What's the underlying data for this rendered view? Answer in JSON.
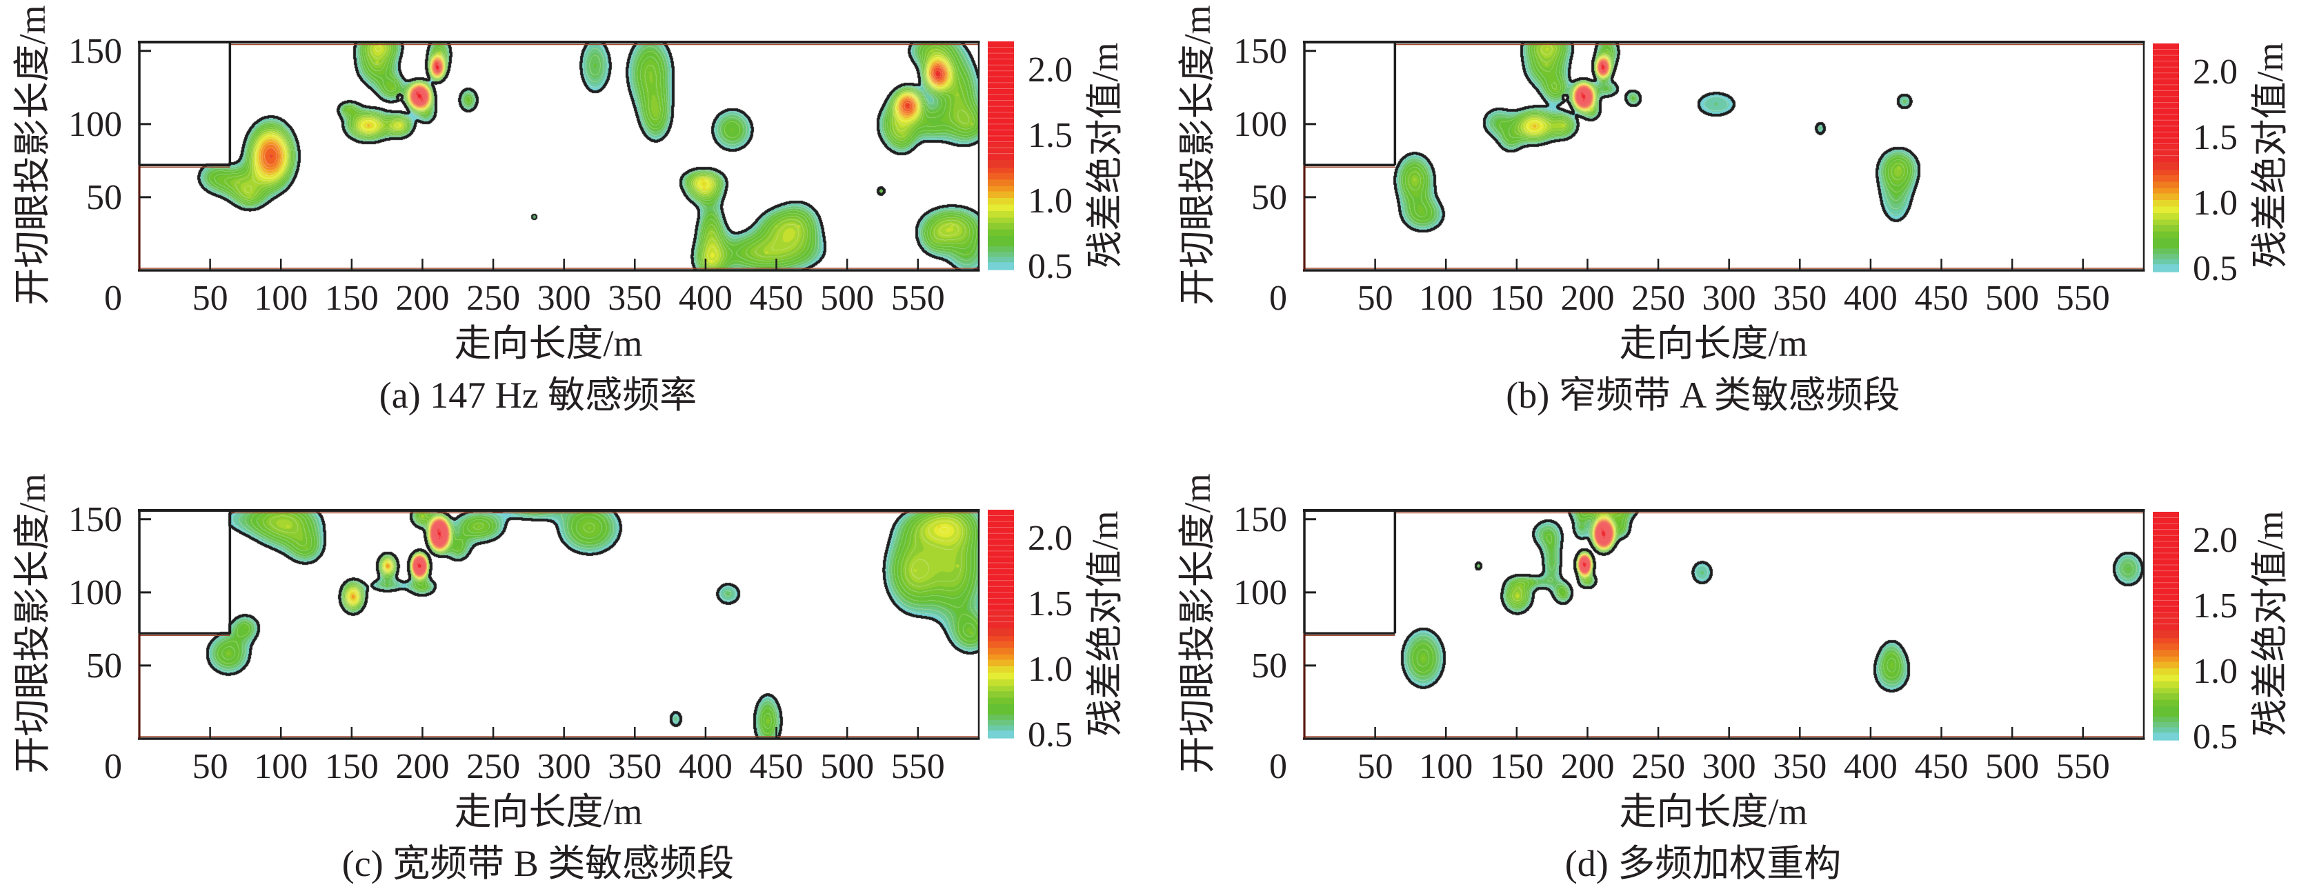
{
  "colormap": [
    {
      "value": 0.5,
      "color": "#76d2d4"
    },
    {
      "value": 0.54,
      "color": "#6ccaa8"
    },
    {
      "value": 0.58,
      "color": "#6cc680"
    },
    {
      "value": 0.62,
      "color": "#68c25c"
    },
    {
      "value": 0.66,
      "color": "#66c034"
    },
    {
      "value": 0.74,
      "color": "#74c42e"
    },
    {
      "value": 0.79,
      "color": "#8ccc30"
    },
    {
      "value": 0.84,
      "color": "#a8d630"
    },
    {
      "value": 0.88,
      "color": "#c6e030"
    },
    {
      "value": 0.93,
      "color": "#e4ec34"
    },
    {
      "value": 0.98,
      "color": "#e6d82a"
    },
    {
      "value": 1.03,
      "color": "#eeb423"
    },
    {
      "value": 1.08,
      "color": "#f29620"
    },
    {
      "value": 1.12,
      "color": "#f07c20"
    },
    {
      "value": 1.17,
      "color": "#f06022"
    },
    {
      "value": 1.22,
      "color": "#ee4a24"
    },
    {
      "value": 1.26,
      "color": "#e83828"
    },
    {
      "value": 1.32,
      "color": "#ec2a2a"
    },
    {
      "value": 1.45,
      "color": "#ee2228"
    }
  ],
  "chart_data": [
    {
      "panel": "a",
      "type": "heatmap",
      "style": "filled-contour",
      "title": "(a) 147 Hz 敏感频率",
      "xlabel": "走向长度/m",
      "ylabel": "开切眼投影长度/m",
      "origin_tick": "0",
      "xticks": [
        50,
        100,
        150,
        200,
        250,
        300,
        350,
        400,
        450,
        500,
        550
      ],
      "yticks": [
        50,
        100,
        150
      ],
      "xlim": [
        0,
        593
      ],
      "ylim": [
        0,
        156
      ],
      "grid": false,
      "legend": "colorbar-right",
      "colorbar": {
        "label": "残差绝对值/m",
        "ticks": [
          0.5,
          1.0,
          1.5,
          2.0
        ],
        "tick_labels": [
          "0.5",
          "1.0",
          "1.5",
          "2.0"
        ],
        "range": [
          0.48,
          2.22
        ]
      },
      "contour_threshold": 0.5,
      "masked_region": {
        "x": [
          0,
          64
        ],
        "y": [
          72,
          156
        ]
      },
      "peaks": [
        {
          "x": 93,
          "y": 78,
          "value": 1.22,
          "extent_x": 20,
          "extent_y": 27
        },
        {
          "x": 70,
          "y": 60,
          "value": 0.75,
          "extent_x": 16,
          "extent_y": 11
        },
        {
          "x": 52,
          "y": 64,
          "value": 0.62,
          "extent_x": 9,
          "extent_y": 8
        },
        {
          "x": 78,
          "y": 50,
          "value": 0.7,
          "extent_x": 10,
          "extent_y": 8
        },
        {
          "x": 168,
          "y": 142,
          "value": 0.8,
          "extent_x": 15,
          "extent_y": 17
        },
        {
          "x": 170,
          "y": 154,
          "value": 0.72,
          "extent_x": 13,
          "extent_y": 8
        },
        {
          "x": 210.5,
          "y": 138.5,
          "value": 1.38,
          "extent_x": 7,
          "extent_y": 10
        },
        {
          "x": 212,
          "y": 148,
          "value": 0.75,
          "extent_x": 8,
          "extent_y": 12
        },
        {
          "x": 198,
          "y": 119,
          "value": 1.7,
          "extent_x": 11,
          "extent_y": 12
        },
        {
          "x": 162,
          "y": 99,
          "value": 1.0,
          "extent_x": 18,
          "extent_y": 12
        },
        {
          "x": 184,
          "y": 99,
          "value": 0.88,
          "extent_x": 10,
          "extent_y": 8.5
        },
        {
          "x": 148,
          "y": 110,
          "value": 0.7,
          "extent_x": 7,
          "extent_y": 5
        },
        {
          "x": 179,
          "y": 124,
          "value": 0.7,
          "extent_x": 9,
          "extent_y": 8
        },
        {
          "x": 203,
          "y": 108,
          "value": 0.65,
          "extent_x": 6,
          "extent_y": 7
        },
        {
          "x": 232.5,
          "y": 116.4,
          "value": 0.7,
          "extent_x": 6.2,
          "extent_y": 7.5
        },
        {
          "x": 279,
          "y": 36.5,
          "value": 0.56,
          "extent_x": 1.3,
          "extent_y": 1.3
        },
        {
          "x": 322,
          "y": 140,
          "value": 0.66,
          "extent_x": 10,
          "extent_y": 18
        },
        {
          "x": 361,
          "y": 135,
          "value": 0.78,
          "extent_x": 16,
          "extent_y": 26
        },
        {
          "x": 365,
          "y": 105,
          "value": 0.72,
          "extent_x": 10,
          "extent_y": 16
        },
        {
          "x": 419,
          "y": 96,
          "value": 0.72,
          "extent_x": 14,
          "extent_y": 14
        },
        {
          "x": 399,
          "y": 56,
          "value": 0.85,
          "extent_x": 14,
          "extent_y": 11
        },
        {
          "x": 398,
          "y": 62,
          "value": 0.7,
          "extent_x": 12,
          "extent_y": 6
        },
        {
          "x": 404,
          "y": 25,
          "value": 0.78,
          "extent_x": 10,
          "extent_y": 22
        },
        {
          "x": 404,
          "y": 6,
          "value": 0.7,
          "extent_x": 10,
          "extent_y": 10
        },
        {
          "x": 443,
          "y": 12,
          "value": 0.82,
          "extent_x": 38,
          "extent_y": 15
        },
        {
          "x": 466,
          "y": 30,
          "value": 0.75,
          "extent_x": 15,
          "extent_y": 16
        },
        {
          "x": 450,
          "y": 30,
          "value": 0.65,
          "extent_x": 12,
          "extent_y": 10
        },
        {
          "x": 524,
          "y": 54.2,
          "value": 0.62,
          "extent_x": 2.2,
          "extent_y": 2.2
        },
        {
          "x": 564,
          "y": 134,
          "value": 1.22,
          "extent_x": 12,
          "extent_y": 14
        },
        {
          "x": 543,
          "y": 113,
          "value": 1.2,
          "extent_x": 13,
          "extent_y": 14
        },
        {
          "x": 578,
          "y": 120,
          "value": 0.78,
          "extent_x": 16,
          "extent_y": 30
        },
        {
          "x": 560,
          "y": 150,
          "value": 0.75,
          "extent_x": 16,
          "extent_y": 12
        },
        {
          "x": 533,
          "y": 100,
          "value": 0.7,
          "extent_x": 11,
          "extent_y": 14
        },
        {
          "x": 540,
          "y": 92,
          "value": 0.65,
          "extent_x": 8,
          "extent_y": 10
        },
        {
          "x": 588,
          "y": 100,
          "value": 0.65,
          "extent_x": 10,
          "extent_y": 10
        },
        {
          "x": 558,
          "y": 100,
          "value": 0.68,
          "extent_x": 12,
          "extent_y": 10
        },
        {
          "x": 574,
          "y": 30,
          "value": 0.82,
          "extent_x": 22,
          "extent_y": 14
        },
        {
          "x": 585,
          "y": 12,
          "value": 0.65,
          "extent_x": 12,
          "extent_y": 13
        },
        {
          "x": 562,
          "y": 20,
          "value": 0.6,
          "extent_x": 8,
          "extent_y": 8
        }
      ],
      "dips": [
        {
          "x": 184,
          "y": 118.5,
          "depth": 0.75,
          "spread_x": 0.9,
          "spread_y": 0.9
        }
      ]
    },
    {
      "panel": "b",
      "type": "heatmap",
      "style": "filled-contour",
      "title": "(b) 窄频带 A 类敏感频段",
      "xlabel": "走向长度/m",
      "ylabel": "开切眼投影长度/m",
      "origin_tick": "0",
      "xticks": [
        50,
        100,
        150,
        200,
        250,
        300,
        350,
        400,
        450,
        500,
        550
      ],
      "yticks": [
        50,
        100,
        150
      ],
      "xlim": [
        0,
        593
      ],
      "ylim": [
        0,
        156
      ],
      "grid": false,
      "legend": "colorbar-right",
      "colorbar": {
        "label": "残差绝对值/m",
        "ticks": [
          0.5,
          1.0,
          1.5,
          2.0
        ],
        "tick_labels": [
          "0.5",
          "1.0",
          "1.5",
          "2.0"
        ],
        "range": [
          0.48,
          2.22
        ]
      },
      "contour_threshold": 0.5,
      "masked_region": {
        "x": [
          0,
          64
        ],
        "y": [
          72,
          156
        ]
      },
      "peaks": [
        {
          "x": 78,
          "y": 62,
          "value": 0.8,
          "extent_x": 14,
          "extent_y": 18
        },
        {
          "x": 84,
          "y": 38,
          "value": 0.7,
          "extent_x": 14,
          "extent_y": 11
        },
        {
          "x": 171,
          "y": 141,
          "value": 0.78,
          "extent_x": 16,
          "extent_y": 17
        },
        {
          "x": 172,
          "y": 154,
          "value": 0.7,
          "extent_x": 14,
          "extent_y": 8
        },
        {
          "x": 211,
          "y": 138.6,
          "value": 1.5,
          "extent_x": 7,
          "extent_y": 9.5
        },
        {
          "x": 214,
          "y": 149,
          "value": 0.72,
          "extent_x": 8,
          "extent_y": 12
        },
        {
          "x": 197.3,
          "y": 118.8,
          "value": 1.85,
          "extent_x": 10,
          "extent_y": 12
        },
        {
          "x": 162.7,
          "y": 98.5,
          "value": 1.0,
          "extent_x": 17,
          "extent_y": 13
        },
        {
          "x": 137,
          "y": 101,
          "value": 0.65,
          "extent_x": 10,
          "extent_y": 9
        },
        {
          "x": 145.7,
          "y": 88,
          "value": 0.6,
          "extent_x": 6,
          "extent_y": 6
        },
        {
          "x": 183,
          "y": 99,
          "value": 0.8,
          "extent_x": 10,
          "extent_y": 9
        },
        {
          "x": 203,
          "y": 110,
          "value": 0.7,
          "extent_x": 6,
          "extent_y": 7
        },
        {
          "x": 178,
          "y": 123,
          "value": 0.68,
          "extent_x": 8,
          "extent_y": 8
        },
        {
          "x": 213,
          "y": 124,
          "value": 0.65,
          "extent_x": 8,
          "extent_y": 5
        },
        {
          "x": 232.4,
          "y": 117.5,
          "value": 0.65,
          "extent_x": 5,
          "extent_y": 5
        },
        {
          "x": 291,
          "y": 113.5,
          "value": 0.58,
          "extent_x": 12.5,
          "extent_y": 7.5
        },
        {
          "x": 364.5,
          "y": 97,
          "value": 0.56,
          "extent_x": 2.8,
          "extent_y": 3.5
        },
        {
          "x": 424,
          "y": 115.5,
          "value": 0.6,
          "extent_x": 4.6,
          "extent_y": 4.4
        },
        {
          "x": 420,
          "y": 70,
          "value": 0.72,
          "extent_x": 13,
          "extent_y": 12.5
        },
        {
          "x": 418,
          "y": 50,
          "value": 0.62,
          "extent_x": 10,
          "extent_y": 16
        }
      ],
      "dips": [
        {
          "x": 184.2,
          "y": 118.3,
          "depth": 0.8,
          "spread_x": 0.9,
          "spread_y": 0.9
        }
      ]
    },
    {
      "panel": "c",
      "type": "heatmap",
      "style": "filled-contour",
      "title": "(c) 宽频带 B 类敏感频段",
      "xlabel": "走向长度/m",
      "ylabel": "开切眼投影长度/m",
      "origin_tick": "0",
      "xticks": [
        50,
        100,
        150,
        200,
        250,
        300,
        350,
        400,
        450,
        500,
        550
      ],
      "yticks": [
        50,
        100,
        150
      ],
      "xlim": [
        0,
        593
      ],
      "ylim": [
        0,
        156
      ],
      "grid": false,
      "legend": "colorbar-right",
      "colorbar": {
        "label": "残差绝对值/m",
        "ticks": [
          0.5,
          1.0,
          1.5,
          2.0
        ],
        "tick_labels": [
          "0.5",
          "1.0",
          "1.5",
          "2.0"
        ],
        "range": [
          0.48,
          2.22
        ]
      },
      "contour_threshold": 0.5,
      "masked_region": {
        "x": [
          0,
          64
        ],
        "y": [
          72,
          156
        ]
      },
      "peaks": [
        {
          "x": 105,
          "y": 145,
          "value": 0.75,
          "extent_x": 22,
          "extent_y": 16
        },
        {
          "x": 85,
          "y": 150,
          "value": 0.6,
          "extent_x": 22,
          "extent_y": 8
        },
        {
          "x": 118,
          "y": 130,
          "value": 0.65,
          "extent_x": 10,
          "extent_y": 9
        },
        {
          "x": 75,
          "y": 76,
          "value": 0.68,
          "extent_x": 9,
          "extent_y": 8
        },
        {
          "x": 63,
          "y": 58,
          "value": 0.75,
          "extent_x": 15,
          "extent_y": 14
        },
        {
          "x": 212,
          "y": 140,
          "value": 2.05,
          "extent_x": 10,
          "extent_y": 15
        },
        {
          "x": 200,
          "y": 152,
          "value": 0.8,
          "extent_x": 8,
          "extent_y": 8
        },
        {
          "x": 198,
          "y": 118,
          "value": 1.9,
          "extent_x": 8,
          "extent_y": 11
        },
        {
          "x": 175.5,
          "y": 118,
          "value": 1.05,
          "extent_x": 7.5,
          "extent_y": 9
        },
        {
          "x": 151,
          "y": 97,
          "value": 1.05,
          "extent_x": 9.5,
          "extent_y": 12
        },
        {
          "x": 175,
          "y": 105,
          "value": 0.62,
          "extent_x": 10,
          "extent_y": 4
        },
        {
          "x": 200,
          "y": 104,
          "value": 0.7,
          "extent_x": 9,
          "extent_y": 6
        },
        {
          "x": 240,
          "y": 145,
          "value": 0.78,
          "extent_x": 18,
          "extent_y": 11
        },
        {
          "x": 225,
          "y": 130,
          "value": 0.68,
          "extent_x": 8,
          "extent_y": 8
        },
        {
          "x": 278,
          "y": 156,
          "value": 0.65,
          "extent_x": 16,
          "extent_y": 6
        },
        {
          "x": 318,
          "y": 144,
          "value": 0.78,
          "extent_x": 22,
          "extent_y": 18
        },
        {
          "x": 416,
          "y": 99,
          "value": 0.6,
          "extent_x": 7.5,
          "extent_y": 6.5
        },
        {
          "x": 379,
          "y": 13.5,
          "value": 0.56,
          "extent_x": 3.5,
          "extent_y": 4.5
        },
        {
          "x": 444,
          "y": 12,
          "value": 0.75,
          "extent_x": 9.5,
          "extent_y": 18
        },
        {
          "x": 548,
          "y": 115,
          "value": 0.85,
          "extent_x": 22,
          "extent_y": 30
        },
        {
          "x": 578,
          "y": 118,
          "value": 0.8,
          "extent_x": 20,
          "extent_y": 40
        },
        {
          "x": 565,
          "y": 145,
          "value": 0.8,
          "extent_x": 25,
          "extent_y": 14
        },
        {
          "x": 588,
          "y": 72,
          "value": 0.68,
          "extent_x": 12,
          "extent_y": 12
        }
      ],
      "dips": []
    },
    {
      "panel": "d",
      "type": "heatmap",
      "style": "filled-contour",
      "title": "(d) 多频加权重构",
      "xlabel": "走向长度/m",
      "ylabel": "开切眼投影长度/m",
      "origin_tick": "0",
      "xticks": [
        50,
        100,
        150,
        200,
        250,
        300,
        350,
        400,
        450,
        500,
        550
      ],
      "yticks": [
        50,
        100,
        150
      ],
      "xlim": [
        0,
        593
      ],
      "ylim": [
        0,
        156
      ],
      "grid": false,
      "legend": "colorbar-right",
      "colorbar": {
        "label": "残差绝对值/m",
        "ticks": [
          0.5,
          1.0,
          1.5,
          2.0
        ],
        "tick_labels": [
          "0.5",
          "1.0",
          "1.5",
          "2.0"
        ],
        "range": [
          0.48,
          2.22
        ]
      },
      "contour_threshold": 0.5,
      "masked_region": {
        "x": [
          0,
          64
        ],
        "y": [
          72,
          156
        ]
      },
      "peaks": [
        {
          "x": 84,
          "y": 55,
          "value": 0.75,
          "extent_x": 15,
          "extent_y": 20
        },
        {
          "x": 123,
          "y": 118,
          "value": 0.6,
          "extent_x": 1.8,
          "extent_y": 2.2
        },
        {
          "x": 211.5,
          "y": 140,
          "value": 2.0,
          "extent_x": 10,
          "extent_y": 14
        },
        {
          "x": 212,
          "y": 156,
          "value": 0.8,
          "extent_x": 23,
          "extent_y": 7
        },
        {
          "x": 196,
          "y": 145,
          "value": 0.62,
          "extent_x": 5,
          "extent_y": 8
        },
        {
          "x": 224,
          "y": 145,
          "value": 0.7,
          "extent_x": 6,
          "extent_y": 8
        },
        {
          "x": 198,
          "y": 119,
          "value": 1.85,
          "extent_x": 7,
          "extent_y": 10
        },
        {
          "x": 175,
          "y": 120,
          "value": 0.65,
          "extent_x": 6,
          "extent_y": 14
        },
        {
          "x": 171,
          "y": 140,
          "value": 0.62,
          "extent_x": 9,
          "extent_y": 8
        },
        {
          "x": 150.5,
          "y": 97.5,
          "value": 0.85,
          "extent_x": 11,
          "extent_y": 12
        },
        {
          "x": 160,
          "y": 107,
          "value": 0.62,
          "extent_x": 10,
          "extent_y": 3.5
        },
        {
          "x": 183,
          "y": 99.5,
          "value": 0.7,
          "extent_x": 6,
          "extent_y": 7
        },
        {
          "x": 200,
          "y": 108,
          "value": 0.72,
          "extent_x": 6,
          "extent_y": 5
        },
        {
          "x": 281,
          "y": 113.5,
          "value": 0.58,
          "extent_x": 6.5,
          "extent_y": 7
        },
        {
          "x": 415,
          "y": 45,
          "value": 0.65,
          "extent_x": 11,
          "extent_y": 12
        },
        {
          "x": 415,
          "y": 57,
          "value": 0.56,
          "extent_x": 5,
          "extent_y": 7
        },
        {
          "x": 582,
          "y": 116,
          "value": 0.66,
          "extent_x": 10,
          "extent_y": 11
        }
      ],
      "dips": []
    }
  ]
}
